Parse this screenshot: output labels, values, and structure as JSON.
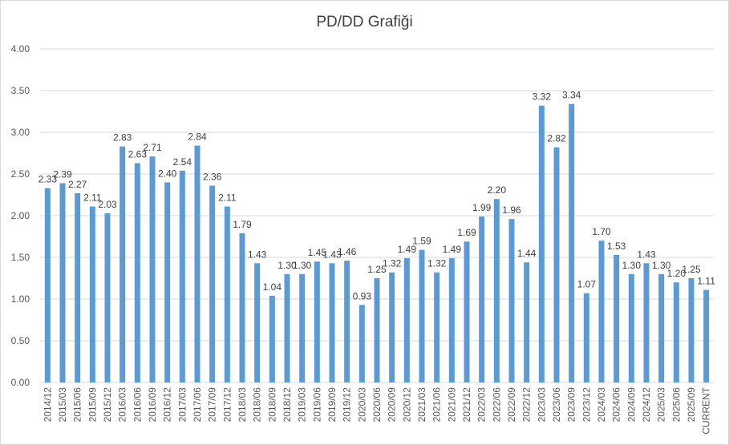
{
  "chart_data": {
    "type": "bar",
    "title": "PD/DD Grafiği",
    "xlabel": "",
    "ylabel": "",
    "ylim": [
      0,
      4
    ],
    "yticks": [
      "0.00",
      "0.50",
      "1.00",
      "1.50",
      "2.00",
      "2.50",
      "3.00",
      "3.50",
      "4.00"
    ],
    "grid": true,
    "legend": "none",
    "colors": {
      "bar": "#5b9bd5",
      "grid": "#d9d9d9",
      "text": "#595959"
    },
    "categories": [
      "2014/12",
      "2015/03",
      "2015/06",
      "2015/09",
      "2015/12",
      "2016/03",
      "2016/06",
      "2016/09",
      "2016/12",
      "2017/03",
      "2017/06",
      "2017/09",
      "2017/12",
      "2018/03",
      "2018/06",
      "2018/09",
      "2018/12",
      "2019/03",
      "2019/06",
      "2019/09",
      "2019/12",
      "2020/03",
      "2020/06",
      "2020/09",
      "2020/12",
      "2021/03",
      "2021/06",
      "2021/09",
      "2021/12",
      "2022/03",
      "2022/06",
      "2022/09",
      "2022/12",
      "2023/03",
      "2023/06",
      "2023/09",
      "2023/12",
      "2024/03",
      "2024/06",
      "2024/09",
      "2024/12",
      "2025/03",
      "2025/06",
      "2025/09",
      "CURRENT"
    ],
    "values": [
      2.33,
      2.39,
      2.27,
      2.11,
      2.03,
      2.83,
      2.63,
      2.71,
      2.4,
      2.54,
      2.84,
      2.36,
      2.11,
      1.79,
      1.43,
      1.04,
      1.3,
      1.3,
      1.45,
      1.43,
      1.46,
      0.93,
      1.25,
      1.32,
      1.49,
      1.59,
      1.32,
      1.49,
      1.69,
      1.99,
      2.2,
      1.96,
      1.44,
      3.32,
      2.82,
      3.34,
      1.07,
      1.7,
      1.53,
      1.3,
      1.43,
      1.3,
      1.2,
      1.25,
      1.11
    ],
    "data_labels": [
      "2.33",
      "2.39",
      "2.27",
      "2.11",
      "2.03",
      "2.83",
      "2.63",
      "2.71",
      "2.40",
      "2.54",
      "2.84",
      "2.36",
      "2.11",
      "1.79",
      "1.43",
      "1.04",
      "1.30",
      "1.30",
      "1.45",
      "1.43",
      "1.46",
      "0.93",
      "1.25",
      "1.32",
      "1.49",
      "1.59",
      "1.32",
      "1.49",
      "1.69",
      "1.99",
      "2.20",
      "1.96",
      "1.44",
      "3.32",
      "2.82",
      "3.34",
      "1.07",
      "1.70",
      "1.53",
      "1.30",
      "1.43",
      "1.30",
      "1.20",
      "1.25",
      "1.11"
    ]
  }
}
